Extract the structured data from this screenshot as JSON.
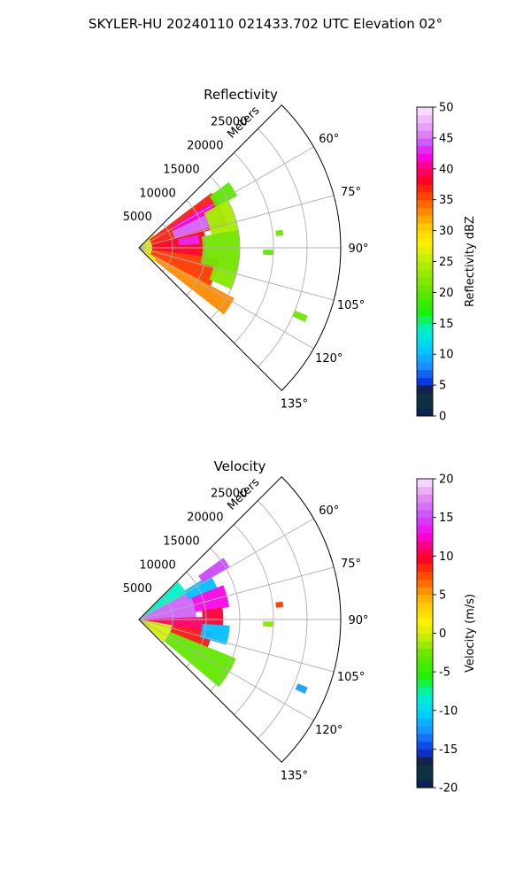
{
  "suptitle": "SKYLER-HU  20240110  021433.702 UTC Elevation 02°",
  "chart_data": [
    {
      "type": "heatmap",
      "projection": "polar-sector",
      "title": "Reflectivity",
      "radial_label": "Meters",
      "range_rings": [
        "5000",
        "10000",
        "15000",
        "20000",
        "25000"
      ],
      "rmax": 30000,
      "theta_range_deg": [
        45,
        135
      ],
      "azimuth_ticks": [
        "60°",
        "75°",
        "90°",
        "105°",
        "120°",
        "135°"
      ],
      "colorbar": {
        "label": "Reflectivity dBZ",
        "min": 0,
        "max": 50,
        "ticks": [
          "0",
          "5",
          "10",
          "15",
          "20",
          "25",
          "30",
          "35",
          "40",
          "45",
          "50"
        ]
      },
      "echo_regions": [
        {
          "az": [
            46,
            134
          ],
          "r": [
            0,
            3000
          ],
          "dbz": 27
        },
        {
          "az": [
            53,
            76
          ],
          "r": [
            2000,
            13500
          ],
          "dbz": 37
        },
        {
          "az": [
            76,
            98
          ],
          "r": [
            2000,
            10000
          ],
          "dbz": 38
        },
        {
          "az": [
            98,
            118
          ],
          "r": [
            2000,
            12000
          ],
          "dbz": 36
        },
        {
          "az": [
            118,
            128
          ],
          "r": [
            3000,
            16000
          ],
          "dbz": 33
        },
        {
          "az": [
            58,
            70
          ],
          "r": [
            6000,
            12500
          ],
          "dbz": 42
        },
        {
          "az": [
            64,
            74
          ],
          "r": [
            5500,
            13000
          ],
          "dbz": 45
        },
        {
          "az": [
            78,
            86
          ],
          "r": [
            6000,
            9000
          ],
          "dbz": 43
        },
        {
          "az": [
            54,
            62
          ],
          "r": [
            13000,
            16500
          ],
          "dbz": 20
        },
        {
          "az": [
            62,
            80
          ],
          "r": [
            11000,
            15000
          ],
          "dbz": 24
        },
        {
          "az": [
            80,
            104
          ],
          "r": [
            9500,
            15000
          ],
          "dbz": 21
        },
        {
          "az": [
            104,
            114
          ],
          "r": [
            11500,
            15000
          ],
          "dbz": 22
        },
        {
          "az": [
            91,
            93
          ],
          "r": [
            18500,
            20000
          ],
          "dbz": 20
        },
        {
          "az": [
            83,
            85
          ],
          "r": [
            20500,
            21500
          ],
          "dbz": 21
        },
        {
          "az": [
            112,
            114
          ],
          "r": [
            25000,
            27000
          ],
          "dbz": 21
        }
      ]
    },
    {
      "type": "heatmap",
      "projection": "polar-sector",
      "title": "Velocity",
      "radial_label": "Meters",
      "range_rings": [
        "5000",
        "10000",
        "15000",
        "20000",
        "25000"
      ],
      "rmax": 30000,
      "theta_range_deg": [
        45,
        135
      ],
      "azimuth_ticks": [
        "60°",
        "75°",
        "90°",
        "105°",
        "120°",
        "135°"
      ],
      "colorbar": {
        "label": "Velocity (m/s)",
        "min": -20,
        "max": 20,
        "ticks": [
          "-20",
          "-15",
          "-10",
          "-5",
          "0",
          "5",
          "10",
          "15",
          "20"
        ]
      },
      "echo_regions": [
        {
          "az": [
            46,
            62
          ],
          "r": [
            0,
            8000
          ],
          "vel": -8
        },
        {
          "az": [
            62,
            88
          ],
          "r": [
            0,
            8500
          ],
          "vel": 16
        },
        {
          "az": [
            88,
            100
          ],
          "r": [
            0,
            9500
          ],
          "vel": 11
        },
        {
          "az": [
            100,
            132
          ],
          "r": [
            0,
            5000
          ],
          "vel": 0
        },
        {
          "az": [
            100,
            112
          ],
          "r": [
            5000,
            11000
          ],
          "vel": 9
        },
        {
          "az": [
            112,
            130
          ],
          "r": [
            5000,
            15500
          ],
          "vel": -3
        },
        {
          "az": [
            58,
            68
          ],
          "r": [
            8000,
            12500
          ],
          "vel": -11
        },
        {
          "az": [
            54,
            60
          ],
          "r": [
            11000,
            15500
          ],
          "vel": 15
        },
        {
          "az": [
            68,
            82
          ],
          "r": [
            8500,
            13500
          ],
          "vel": 13
        },
        {
          "az": [
            82,
            94
          ],
          "r": [
            9500,
            12500
          ],
          "vel": 10
        },
        {
          "az": [
            94,
            106
          ],
          "r": [
            9500,
            13500
          ],
          "vel": -11
        },
        {
          "az": [
            91,
            93
          ],
          "r": [
            18500,
            20000
          ],
          "vel": -2
        },
        {
          "az": [
            83,
            85
          ],
          "r": [
            20500,
            21500
          ],
          "vel": 8
        },
        {
          "az": [
            112,
            114
          ],
          "r": [
            25500,
            27000
          ],
          "vel": -12
        }
      ]
    }
  ]
}
